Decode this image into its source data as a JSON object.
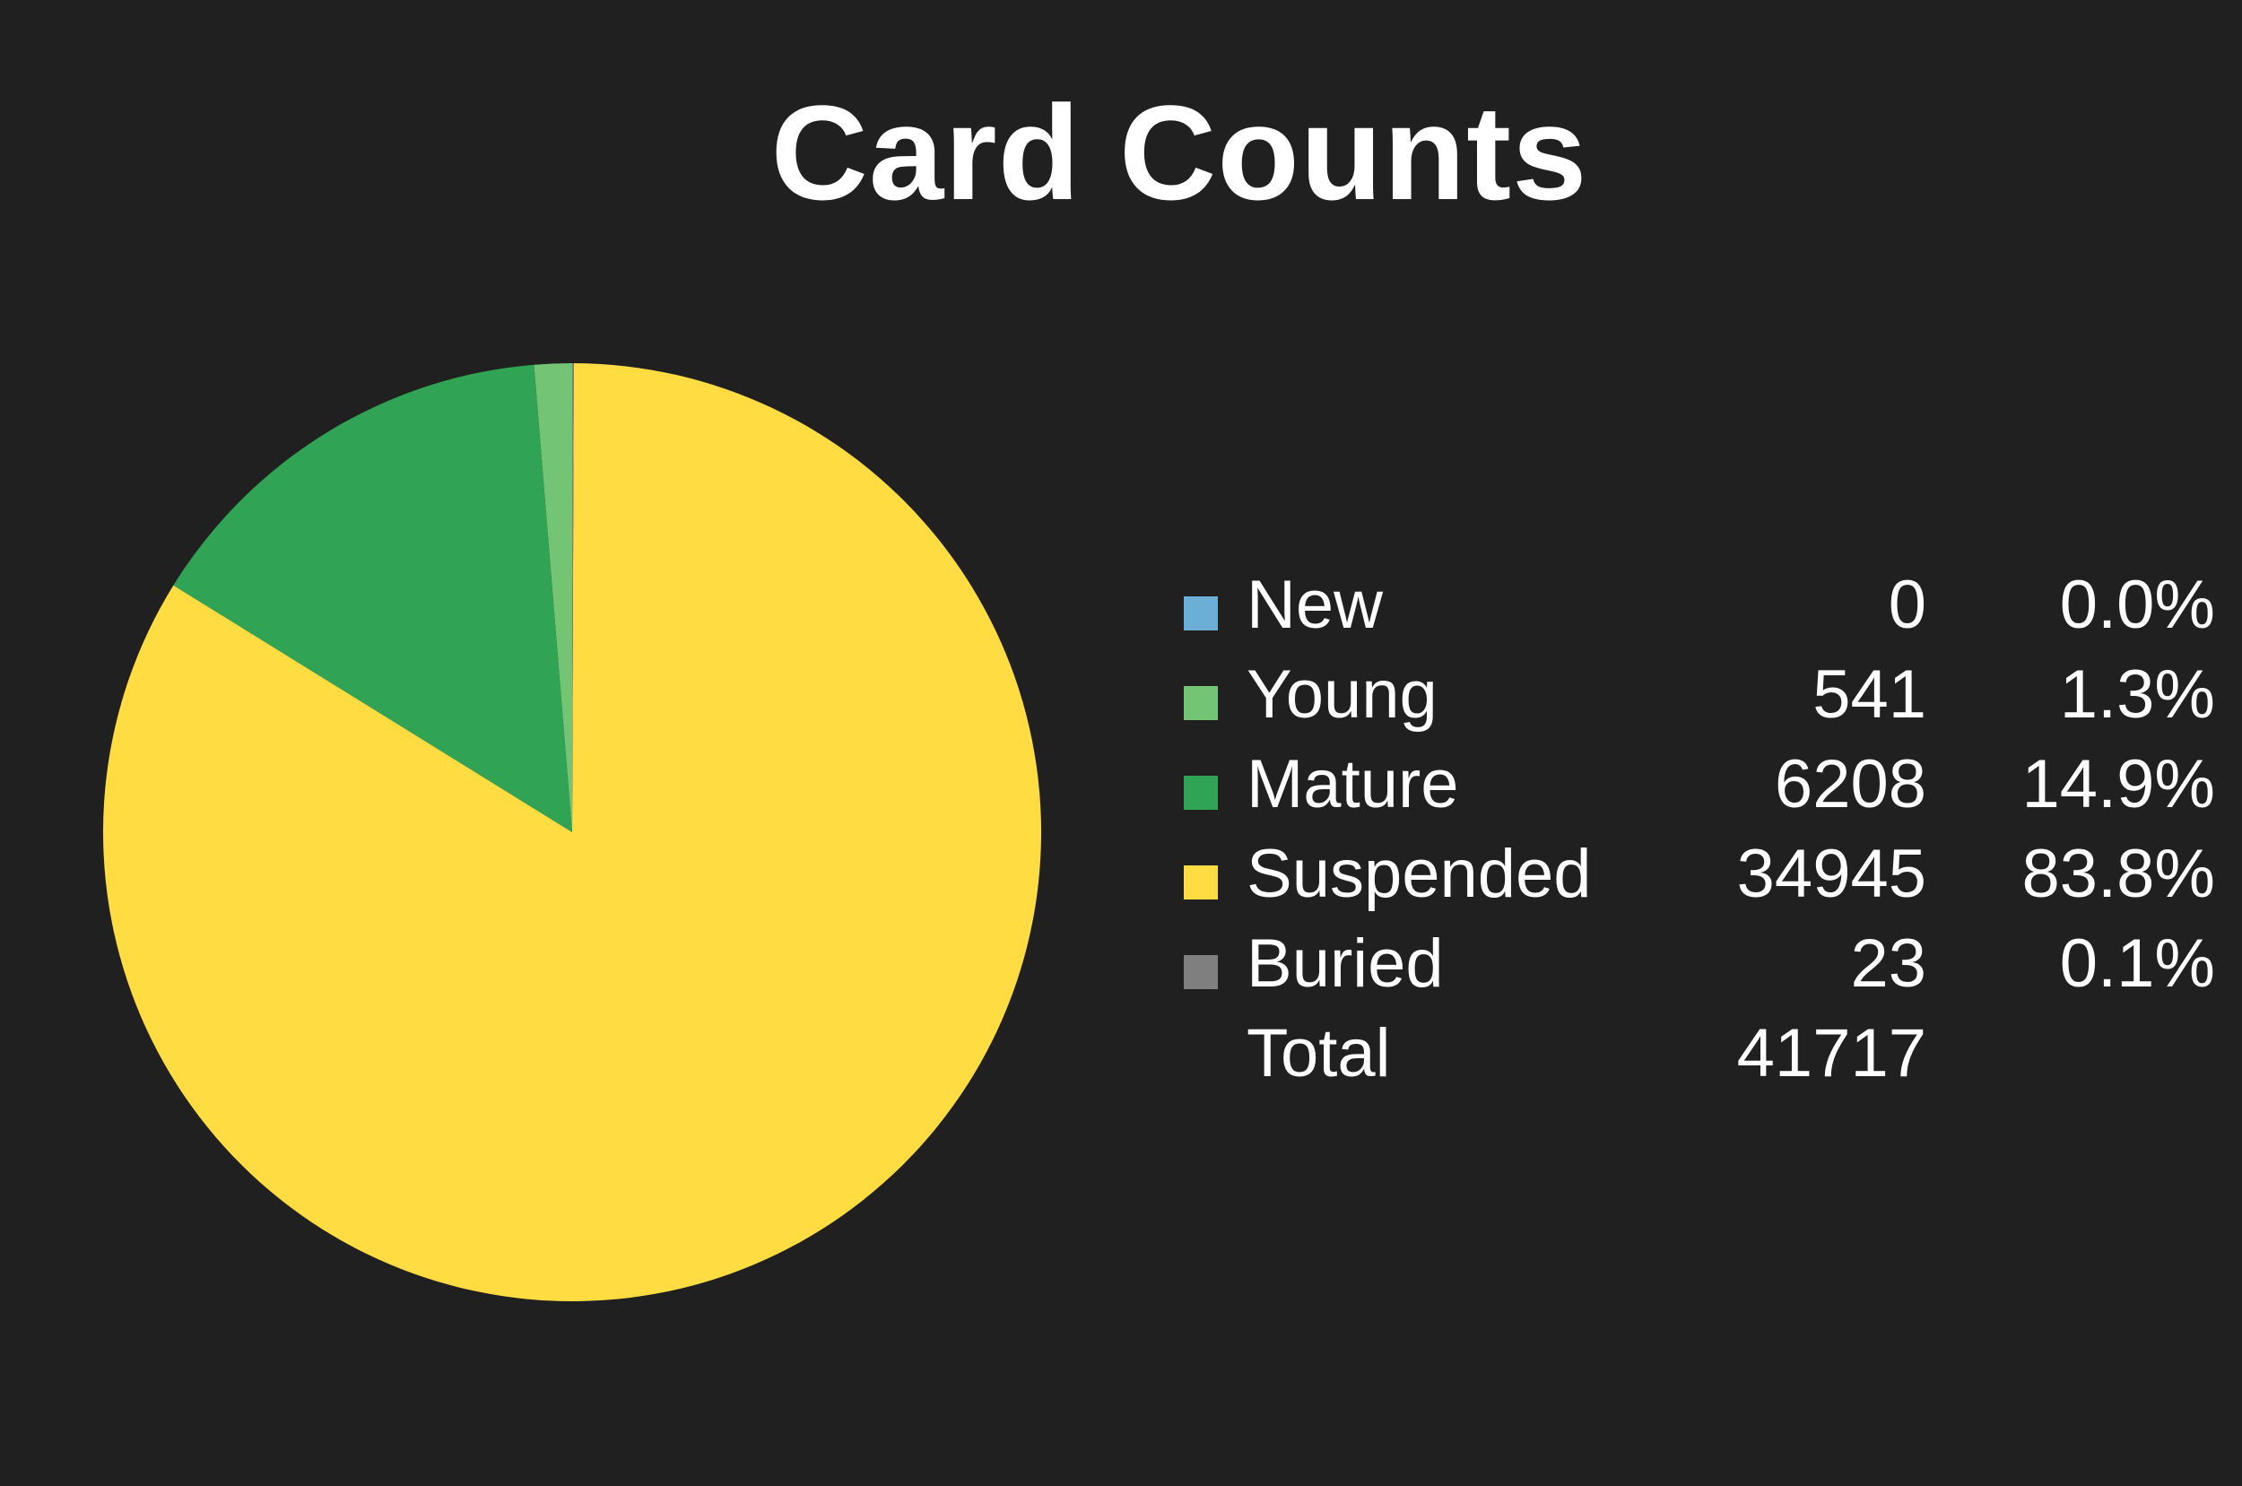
{
  "chart_data": {
    "type": "pie",
    "title": "Card Counts",
    "slices": [
      {
        "label": "New",
        "value": 0,
        "percent": "0.0%",
        "color": "#6baed6"
      },
      {
        "label": "Young",
        "value": 541,
        "percent": "1.3%",
        "color": "#74c476"
      },
      {
        "label": "Mature",
        "value": 6208,
        "percent": "14.9%",
        "color": "#31a354"
      },
      {
        "label": "Suspended",
        "value": 34945,
        "percent": "83.8%",
        "color": "#ffdc41"
      },
      {
        "label": "Buried",
        "value": 23,
        "percent": "0.1%",
        "color": "#7f7f7f"
      }
    ],
    "total_label": "Total",
    "total_value": "41717",
    "legend_position": "right"
  }
}
